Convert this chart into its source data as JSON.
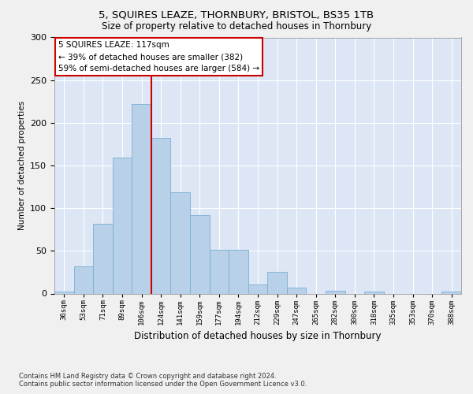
{
  "title1": "5, SQUIRES LEAZE, THORNBURY, BRISTOL, BS35 1TB",
  "title2": "Size of property relative to detached houses in Thornbury",
  "xlabel": "Distribution of detached houses by size in Thornbury",
  "ylabel": "Number of detached properties",
  "categories": [
    "36sqm",
    "53sqm",
    "71sqm",
    "89sqm",
    "106sqm",
    "124sqm",
    "141sqm",
    "159sqm",
    "177sqm",
    "194sqm",
    "212sqm",
    "229sqm",
    "247sqm",
    "265sqm",
    "282sqm",
    "300sqm",
    "318sqm",
    "335sqm",
    "353sqm",
    "370sqm",
    "388sqm"
  ],
  "values": [
    2,
    32,
    82,
    159,
    222,
    182,
    119,
    92,
    51,
    51,
    11,
    25,
    7,
    0,
    3,
    0,
    2,
    0,
    0,
    0,
    2
  ],
  "bar_color": "#b8d0e8",
  "bar_edge_color": "#7aafd4",
  "vline_x": 4.5,
  "vline_color": "#cc0000",
  "annotation_text": "5 SQUIRES LEAZE: 117sqm\n← 39% of detached houses are smaller (382)\n59% of semi-detached houses are larger (584) →",
  "annotation_box_color": "#ffffff",
  "annotation_box_edge": "#cc0000",
  "background_color": "#dce6f5",
  "grid_color": "#ffffff",
  "footnote": "Contains HM Land Registry data © Crown copyright and database right 2024.\nContains public sector information licensed under the Open Government Licence v3.0.",
  "ylim": [
    0,
    300
  ],
  "yticks": [
    0,
    50,
    100,
    150,
    200,
    250,
    300
  ]
}
